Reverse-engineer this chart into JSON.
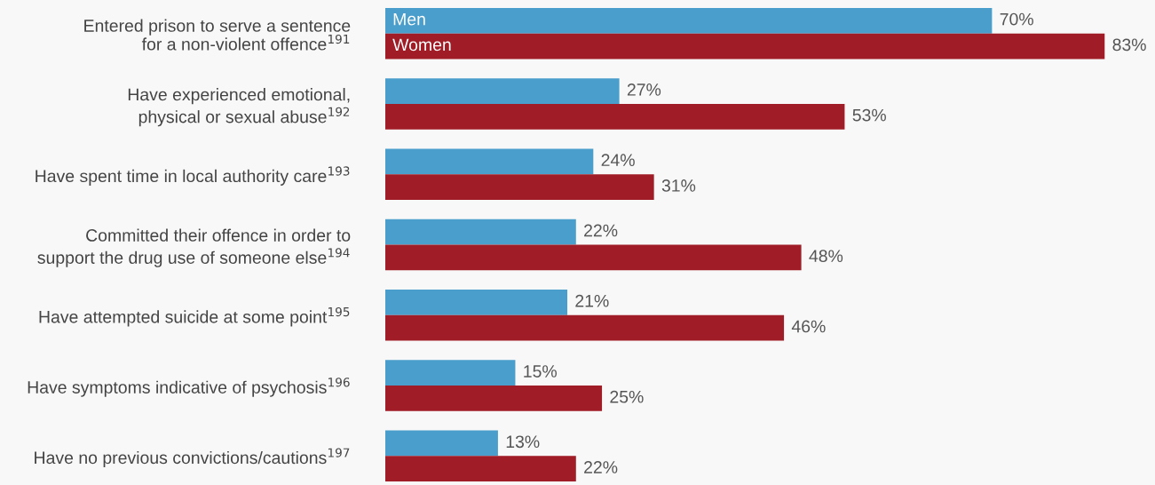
{
  "chart_data": {
    "type": "bar",
    "orientation": "horizontal",
    "legend": false,
    "grid": false,
    "categories": [
      "Entered prison to serve a sentence\nfor a non-violent offence$^{191}$",
      "Have experienced emotional,\nphysical or sexual abuse$^{192}$",
      "Have spent time in local authority care$^{193}$",
      "Committed their offence in order to\nsupport the drug use of someone else$^{194}$",
      "Have attempted suicide at some point$^{195}$",
      "Have symptoms indicative of psychosis$^{196}$",
      "Have no previous convictions/cautions$^{197}$"
    ],
    "series": [
      {
        "name": "Men",
        "color": "#4a9ecc",
        "values": [
          70,
          27,
          24,
          22,
          21,
          15,
          13
        ],
        "value_labels": [
          "70%",
          "27%",
          "24%",
          "22%",
          "21%",
          "15%",
          "13%"
        ]
      },
      {
        "name": "Women",
        "color": "#a01c26",
        "values": [
          83,
          53,
          31,
          48,
          46,
          25,
          22
        ],
        "value_labels": [
          "83%",
          "53%",
          "31%",
          "48%",
          "46%",
          "25%",
          "22%"
        ]
      }
    ]
  }
}
